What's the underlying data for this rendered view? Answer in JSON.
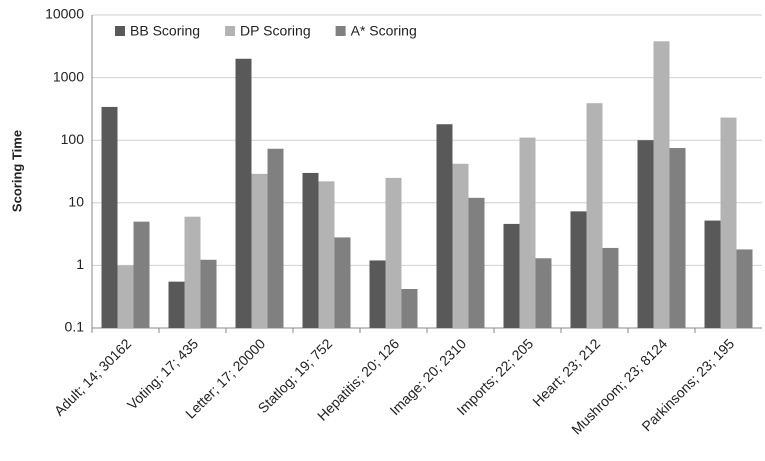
{
  "chart_data": {
    "type": "bar",
    "ylabel": "Scoring Time",
    "yscale": "log",
    "grid": true,
    "legend": "top-left",
    "categories": [
      "Adult; 14; 30162",
      "Voting; 17; 435",
      "Letter; 17; 20000",
      "Statlog; 19; 752",
      "Hepatitis; 20; 126",
      "Image; 20; 2310",
      "Imports; 22; 205",
      "Heart; 23; 212",
      "Mushroom; 23; 8124",
      "Parkinsons; 23; 195"
    ],
    "series": [
      {
        "name": "BB Scoring",
        "color": "#595959",
        "values": [
          340,
          0.55,
          2000,
          30,
          1.2,
          180,
          4.6,
          7.3,
          100,
          5.2
        ]
      },
      {
        "name": "DP Scoring",
        "color": "#b3b3b3",
        "values": [
          1,
          6,
          29,
          22,
          25,
          42,
          110,
          390,
          3800,
          230
        ]
      },
      {
        "name": "A* Scoring",
        "color": "#808080",
        "values": [
          5,
          1.23,
          73,
          2.8,
          0.42,
          12,
          1.3,
          1.9,
          75,
          1.8
        ]
      }
    ],
    "ylim": [
      0.1,
      10000
    ],
    "yticks": [
      0.1,
      1,
      10,
      100,
      1000,
      10000
    ]
  }
}
